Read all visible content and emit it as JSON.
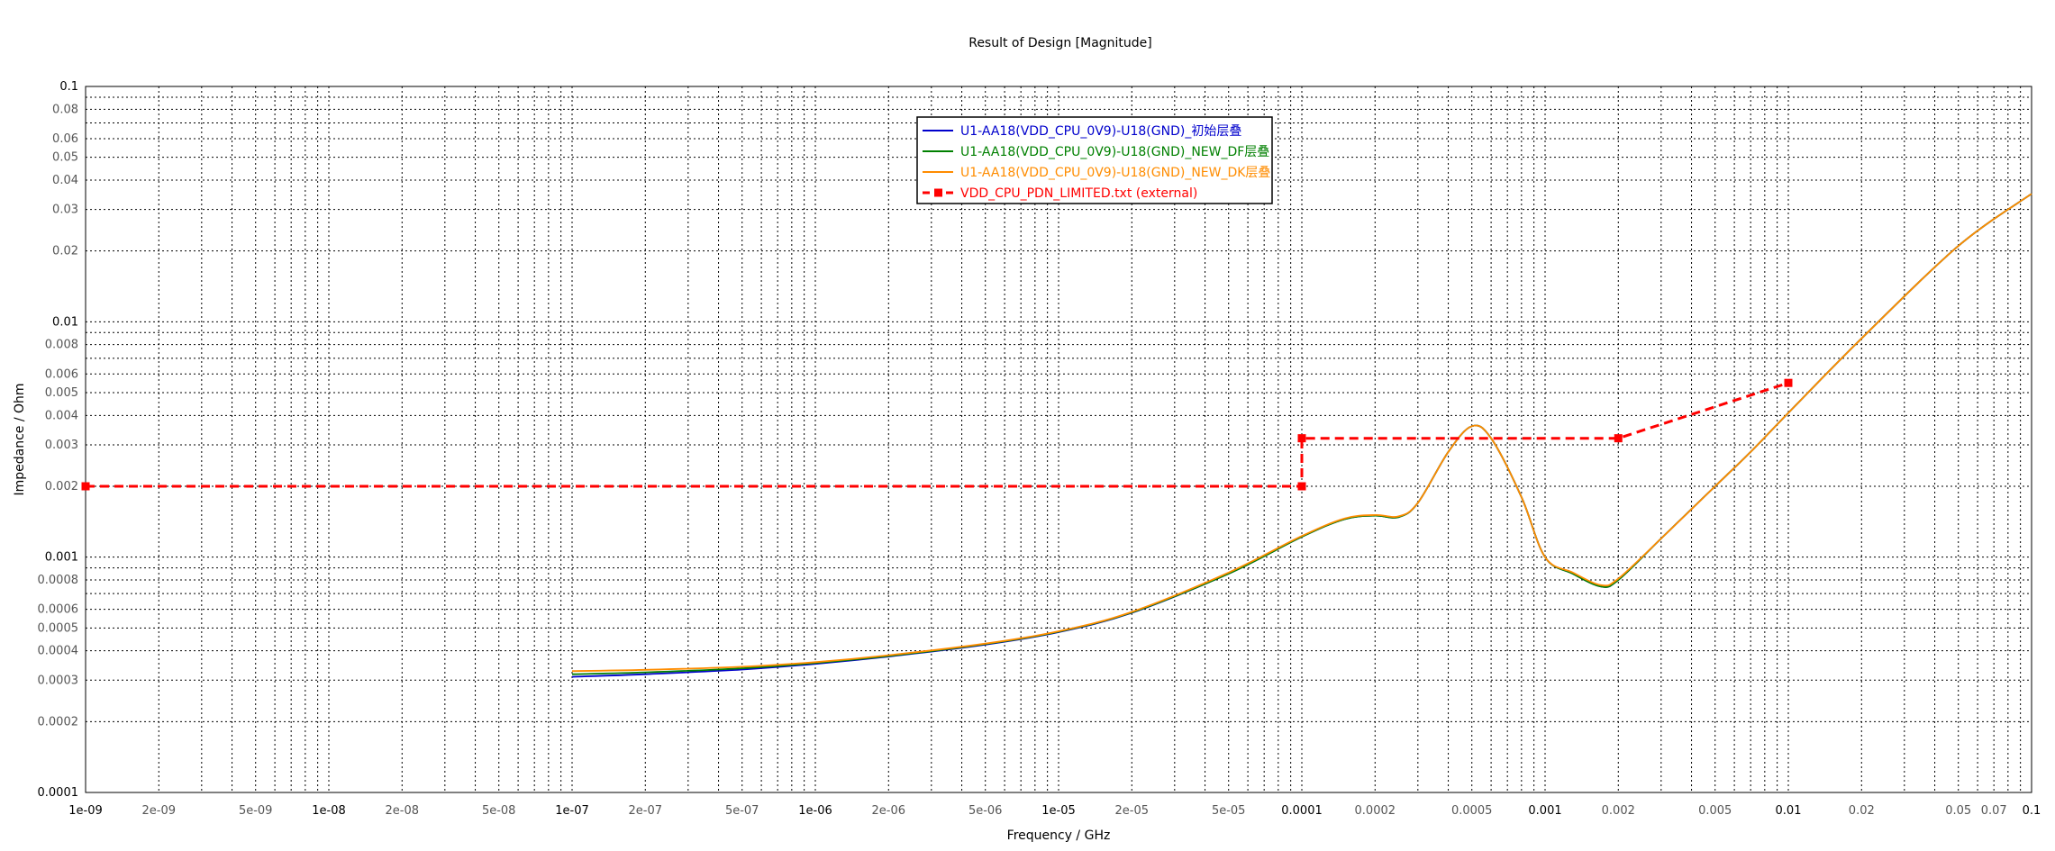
{
  "chart_data": {
    "type": "line",
    "title": "Result of Design [Magnitude]",
    "xlabel": "Frequency / GHz",
    "ylabel": "Impedance / Ohm",
    "xscale": "log",
    "yscale": "log",
    "xlim": [
      1e-09,
      0.1
    ],
    "ylim": [
      0.0001,
      0.1
    ],
    "grid": true,
    "legend_position": "top-center",
    "x_tick_labels": [
      {
        "value": 1e-09,
        "label": "1e-09",
        "major": true
      },
      {
        "value": 2e-09,
        "label": "2e-09",
        "major": false
      },
      {
        "value": 5e-09,
        "label": "5e-09",
        "major": false
      },
      {
        "value": 1e-08,
        "label": "1e-08",
        "major": true
      },
      {
        "value": 2e-08,
        "label": "2e-08",
        "major": false
      },
      {
        "value": 5e-08,
        "label": "5e-08",
        "major": false
      },
      {
        "value": 1e-07,
        "label": "1e-07",
        "major": true
      },
      {
        "value": 2e-07,
        "label": "2e-07",
        "major": false
      },
      {
        "value": 5e-07,
        "label": "5e-07",
        "major": false
      },
      {
        "value": 1e-06,
        "label": "1e-06",
        "major": true
      },
      {
        "value": 2e-06,
        "label": "2e-06",
        "major": false
      },
      {
        "value": 5e-06,
        "label": "5e-06",
        "major": false
      },
      {
        "value": 1e-05,
        "label": "1e-05",
        "major": true
      },
      {
        "value": 2e-05,
        "label": "2e-05",
        "major": false
      },
      {
        "value": 5e-05,
        "label": "5e-05",
        "major": false
      },
      {
        "value": 0.0001,
        "label": "0.0001",
        "major": true
      },
      {
        "value": 0.0002,
        "label": "0.0002",
        "major": false
      },
      {
        "value": 0.0005,
        "label": "0.0005",
        "major": false
      },
      {
        "value": 0.001,
        "label": "0.001",
        "major": true
      },
      {
        "value": 0.002,
        "label": "0.002",
        "major": false
      },
      {
        "value": 0.005,
        "label": "0.005",
        "major": false
      },
      {
        "value": 0.01,
        "label": "0.01",
        "major": true
      },
      {
        "value": 0.02,
        "label": "0.02",
        "major": false
      },
      {
        "value": 0.05,
        "label": "0.05",
        "major": false
      },
      {
        "value": 0.07,
        "label": "0.07",
        "major": false
      },
      {
        "value": 0.1,
        "label": "0.1",
        "major": true
      }
    ],
    "y_tick_labels": [
      {
        "value": 0.1,
        "label": "0.1",
        "major": true
      },
      {
        "value": 0.08,
        "label": "0.08",
        "major": false
      },
      {
        "value": 0.06,
        "label": "0.06",
        "major": false
      },
      {
        "value": 0.05,
        "label": "0.05",
        "major": false
      },
      {
        "value": 0.04,
        "label": "0.04",
        "major": false
      },
      {
        "value": 0.03,
        "label": "0.03",
        "major": false
      },
      {
        "value": 0.02,
        "label": "0.02",
        "major": false
      },
      {
        "value": 0.01,
        "label": "0.01",
        "major": true
      },
      {
        "value": 0.008,
        "label": "0.008",
        "major": false
      },
      {
        "value": 0.006,
        "label": "0.006",
        "major": false
      },
      {
        "value": 0.005,
        "label": "0.005",
        "major": false
      },
      {
        "value": 0.004,
        "label": "0.004",
        "major": false
      },
      {
        "value": 0.003,
        "label": "0.003",
        "major": false
      },
      {
        "value": 0.002,
        "label": "0.002",
        "major": false
      },
      {
        "value": 0.001,
        "label": "0.001",
        "major": true
      },
      {
        "value": 0.0008,
        "label": "0.0008",
        "major": false
      },
      {
        "value": 0.0006,
        "label": "0.0006",
        "major": false
      },
      {
        "value": 0.0005,
        "label": "0.0005",
        "major": false
      },
      {
        "value": 0.0004,
        "label": "0.0004",
        "major": false
      },
      {
        "value": 0.0003,
        "label": "0.0003",
        "major": false
      },
      {
        "value": 0.0002,
        "label": "0.0002",
        "major": false
      },
      {
        "value": 0.0001,
        "label": "0.0001",
        "major": true
      }
    ],
    "series": [
      {
        "name": "U1-AA18(VDD_CPU_0V9)-U18(GND)_初始层叠",
        "color": "#0000cc",
        "style": "solid",
        "x": [
          1e-07,
          2e-07,
          5e-07,
          1e-06,
          2e-06,
          5e-06,
          1e-05,
          2e-05,
          5e-05,
          0.0001,
          0.00015,
          0.0002,
          0.00025,
          0.0003,
          0.0004,
          0.0005,
          0.0006,
          0.0008,
          0.001,
          0.0013,
          0.0017,
          0.002,
          0.003,
          0.005,
          0.007,
          0.01,
          0.02,
          0.05,
          0.1
        ],
        "y": [
          0.00031,
          0.000318,
          0.000333,
          0.000352,
          0.000378,
          0.000425,
          0.00048,
          0.00058,
          0.00085,
          0.00122,
          0.00145,
          0.0015,
          0.00148,
          0.0017,
          0.0028,
          0.0036,
          0.0032,
          0.0018,
          0.001,
          0.00085,
          0.00075,
          0.0008,
          0.0012,
          0.002,
          0.0028,
          0.0041,
          0.0085,
          0.021,
          0.035
        ]
      },
      {
        "name": "U1-AA18(VDD_CPU_0V9)-U18(GND)_NEW_DF层叠",
        "color": "#008000",
        "style": "solid",
        "x": [
          1e-07,
          2e-07,
          5e-07,
          1e-06,
          2e-06,
          5e-06,
          1e-05,
          2e-05,
          5e-05,
          0.0001,
          0.00015,
          0.0002,
          0.00025,
          0.0003,
          0.0004,
          0.0005,
          0.0006,
          0.0008,
          0.001,
          0.0013,
          0.0017,
          0.002,
          0.003,
          0.005,
          0.007,
          0.01,
          0.02,
          0.05,
          0.1
        ],
        "y": [
          0.000318,
          0.000324,
          0.000337,
          0.000355,
          0.00038,
          0.000427,
          0.000482,
          0.000582,
          0.00085,
          0.00122,
          0.00145,
          0.0015,
          0.00148,
          0.0017,
          0.0028,
          0.0036,
          0.0032,
          0.0018,
          0.001,
          0.00085,
          0.00075,
          0.0008,
          0.0012,
          0.002,
          0.0028,
          0.0041,
          0.0085,
          0.021,
          0.035
        ]
      },
      {
        "name": "U1-AA18(VDD_CPU_0V9)-U18(GND)_NEW_DK层叠",
        "color": "#ff8c00",
        "style": "solid",
        "x": [
          1e-07,
          2e-07,
          5e-07,
          1e-06,
          2e-06,
          5e-06,
          1e-05,
          2e-05,
          5e-05,
          0.0001,
          0.00015,
          0.0002,
          0.00025,
          0.0003,
          0.0004,
          0.0005,
          0.0006,
          0.0008,
          0.001,
          0.0013,
          0.0017,
          0.002,
          0.003,
          0.005,
          0.007,
          0.01,
          0.02,
          0.05,
          0.1
        ],
        "y": [
          0.000328,
          0.000332,
          0.000342,
          0.000358,
          0.000383,
          0.000429,
          0.000484,
          0.000585,
          0.00086,
          0.00123,
          0.00146,
          0.00151,
          0.00149,
          0.0017,
          0.0028,
          0.0036,
          0.0032,
          0.0018,
          0.001,
          0.00086,
          0.00076,
          0.00081,
          0.0012,
          0.002,
          0.0028,
          0.0041,
          0.0085,
          0.021,
          0.035
        ]
      },
      {
        "name": "VDD_CPU_PDN_LIMITED.txt (external)",
        "color": "#ff0000",
        "style": "dashed-markers",
        "x": [
          1e-09,
          0.0001,
          0.0001,
          0.002,
          0.01
        ],
        "y": [
          0.002,
          0.002,
          0.0032,
          0.0032,
          0.0055
        ]
      }
    ]
  }
}
